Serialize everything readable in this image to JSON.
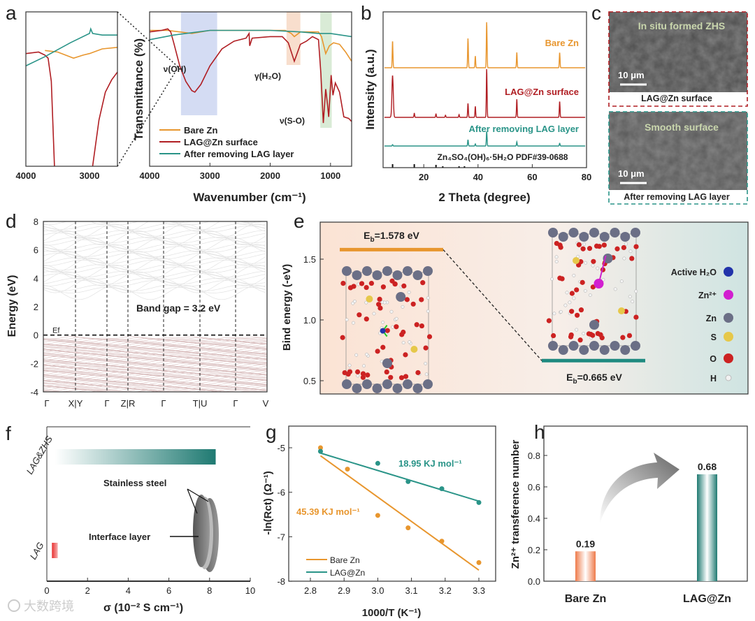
{
  "panel_labels": {
    "a": "a",
    "b": "b",
    "c": "c",
    "d": "d",
    "e": "e",
    "f": "f",
    "g": "g",
    "h": "h"
  },
  "colors": {
    "orange": "#e8962e",
    "red": "#b01e23",
    "teal": "#2a9488",
    "dark_teal": "#1f7a72"
  },
  "watermark": "大数跨境",
  "chart_data": [
    {
      "panel": "a",
      "type": "line",
      "title": "",
      "xlabel": "Wavenumber (cm⁻¹)",
      "ylabel": "Transmittance (%)",
      "xlim": [
        4000,
        650
      ],
      "ylim": [
        0,
        100
      ],
      "xticks": [
        "4000",
        "3000",
        "2000",
        "1000"
      ],
      "legend_position": "bottom-left",
      "bands": [
        {
          "label": "ν(OH)",
          "range": [
            3480,
            2880
          ],
          "color": "#c9d3f0"
        },
        {
          "label": "γ(H₂O)",
          "range": [
            1730,
            1500
          ],
          "color": "#f6d6c0"
        },
        {
          "label": "ν(S-O)",
          "range": [
            1170,
            980
          ],
          "color": "#cfe6cc"
        }
      ],
      "series": [
        {
          "name": "Bare Zn",
          "color": "#e8962e",
          "points": [
            [
              4000,
              88
            ],
            [
              3700,
              88
            ],
            [
              3300,
              86
            ],
            [
              3000,
              88
            ],
            [
              2400,
              88
            ],
            [
              1750,
              88
            ],
            [
              1650,
              86
            ],
            [
              1600,
              84
            ],
            [
              1500,
              87
            ],
            [
              1200,
              87
            ],
            [
              1150,
              84
            ],
            [
              1080,
              73
            ],
            [
              1020,
              78
            ],
            [
              950,
              80
            ],
            [
              850,
              79
            ],
            [
              750,
              74
            ],
            [
              650,
              68
            ]
          ]
        },
        {
          "name": "LAG@Zn surface",
          "color": "#b01e23",
          "points": [
            [
              4000,
              87
            ],
            [
              3800,
              88
            ],
            [
              3700,
              89
            ],
            [
              3650,
              87
            ],
            [
              3600,
              80
            ],
            [
              3500,
              65
            ],
            [
              3400,
              55
            ],
            [
              3300,
              49
            ],
            [
              3250,
              48
            ],
            [
              3150,
              53
            ],
            [
              3000,
              65
            ],
            [
              2800,
              76
            ],
            [
              2600,
              81
            ],
            [
              2400,
              83
            ],
            [
              2350,
              86
            ],
            [
              2340,
              78
            ],
            [
              2300,
              83
            ],
            [
              2000,
              84
            ],
            [
              1800,
              84
            ],
            [
              1700,
              80
            ],
            [
              1600,
              68
            ],
            [
              1500,
              79
            ],
            [
              1400,
              81
            ],
            [
              1300,
              84
            ],
            [
              1200,
              82
            ],
            [
              1160,
              60
            ],
            [
              1120,
              28
            ],
            [
              1080,
              50
            ],
            [
              1050,
              40
            ],
            [
              1030,
              32
            ],
            [
              990,
              59
            ],
            [
              960,
              46
            ],
            [
              920,
              54
            ],
            [
              850,
              48
            ],
            [
              780,
              32
            ],
            [
              700,
              31
            ],
            [
              650,
              29
            ]
          ]
        },
        {
          "name": "After removing LAG layer",
          "color": "#2a9488",
          "points": [
            [
              4000,
              82
            ],
            [
              3600,
              85
            ],
            [
              3000,
              88
            ],
            [
              2500,
              88
            ],
            [
              2000,
              88
            ],
            [
              1500,
              87
            ],
            [
              1200,
              86
            ],
            [
              1000,
              86
            ],
            [
              650,
              84
            ]
          ]
        }
      ],
      "inset": {
        "xlim": [
          4000,
          2560
        ],
        "xticks": [
          "4000",
          "3000"
        ],
        "series": [
          {
            "name": "Bare Zn",
            "points": [
              [
                3700,
                75
              ],
              [
                3500,
                74
              ],
              [
                3250,
                70
              ],
              [
                3100,
                72
              ],
              [
                3000,
                73
              ],
              [
                2800,
                76
              ],
              [
                2560,
                77
              ]
            ]
          },
          {
            "name": "LAG@Zn surface",
            "points": [
              [
                4000,
                73
              ],
              [
                3800,
                74
              ],
              [
                3700,
                72
              ],
              [
                3650,
                70
              ],
              [
                3600,
                55
              ],
              [
                3550,
                0
              ],
              [
                3450,
                -40
              ],
              [
                3000,
                -40
              ],
              [
                2950,
                0
              ],
              [
                2850,
                30
              ],
              [
                2750,
                48
              ],
              [
                2650,
                56
              ],
              [
                2560,
                61
              ]
            ]
          },
          {
            "name": "After removing LAG layer",
            "points": [
              [
                4000,
                65
              ],
              [
                3700,
                71
              ],
              [
                3300,
                80
              ],
              [
                3000,
                86
              ],
              [
                2980,
                89
              ],
              [
                2950,
                86
              ],
              [
                2800,
                85
              ],
              [
                2560,
                85
              ]
            ]
          }
        ]
      }
    },
    {
      "panel": "b",
      "type": "line",
      "xlabel": "2 Theta (degree)",
      "ylabel": "Intensity (a.u.)",
      "xlim": [
        5,
        80
      ],
      "ylim": [
        0,
        223
      ],
      "xticks": [
        "20",
        "40",
        "60",
        "80"
      ],
      "series": [
        {
          "name": "Bare Zn",
          "color": "#e8962e",
          "offset": 143,
          "peaks": [
            [
              8.5,
              39
            ],
            [
              36.3,
              42
            ],
            [
              39,
              17
            ],
            [
              43.2,
              66
            ],
            [
              54.3,
              22
            ],
            [
              70.1,
              22
            ]
          ]
        },
        {
          "name": "LAG@Zn surface",
          "color": "#b01e23",
          "offset": 72,
          "peaks": [
            [
              8.5,
              60
            ],
            [
              16.5,
              6
            ],
            [
              24.5,
              5
            ],
            [
              28,
              3
            ],
            [
              33,
              4
            ],
            [
              36.3,
              20
            ],
            [
              39,
              16
            ],
            [
              43.2,
              70
            ],
            [
              54.3,
              26
            ],
            [
              70.1,
              23
            ]
          ]
        },
        {
          "name": "After removing LAG layer",
          "color": "#2a9488",
          "offset": 31,
          "peaks": [
            [
              8.5,
              2
            ],
            [
              36.3,
              9
            ],
            [
              39,
              3
            ],
            [
              43.2,
              21
            ],
            [
              54.3,
              6
            ],
            [
              70.1,
              4
            ]
          ]
        }
      ],
      "reference": {
        "label": "Zn₄SO₄(OH)₆·5H₂O  PDF#39-0688",
        "sticks": [
          [
            8.5,
            5
          ],
          [
            16.5,
            5
          ],
          [
            24.5,
            4
          ],
          [
            27,
            2
          ],
          [
            33,
            2
          ],
          [
            35,
            2
          ]
        ]
      }
    },
    {
      "panel": "d",
      "type": "line",
      "ylabel": "Energy (eV)",
      "ylim": [
        -4,
        8
      ],
      "yticks": [
        "8",
        "6",
        "4",
        "2",
        "0",
        "-2",
        "-4"
      ],
      "kpath": [
        "Γ",
        "X|Y",
        "Γ",
        "Z|R",
        "Γ",
        "T|U",
        "Γ",
        "V"
      ],
      "fermi_label": "Ef",
      "band_gap_eV": 3.2,
      "annotation": "Band gap = 3.2 eV"
    },
    {
      "panel": "e",
      "type": "line",
      "ylabel": "Bind energy (-eV)",
      "ylim": [
        0.42,
        1.78
      ],
      "yticks": [
        "1.5",
        "1.0",
        "0.5"
      ],
      "levels": [
        {
          "value": 1.578,
          "label": {
            "main": "E",
            "sub": "b",
            "rest": "=1.578 eV"
          },
          "color": "#e8962e"
        },
        {
          "value": 0.665,
          "label": {
            "main": "E",
            "sub": "b",
            "rest": "=0.665 eV"
          },
          "color": "#1f8a80"
        }
      ],
      "legend": [
        {
          "label": "Active H₂O",
          "color": "#2233aa"
        },
        {
          "label": "Zn²⁺",
          "color": "#d21fd0"
        },
        {
          "label": "Zn",
          "color": "#6b6f86"
        },
        {
          "label": "S",
          "color": "#e6c84a"
        },
        {
          "label": "O",
          "color": "#cc2222"
        },
        {
          "label": "H",
          "color": "#f2f2f2"
        }
      ]
    },
    {
      "panel": "f",
      "type": "bar",
      "xlabel": "σ (10⁻² S cm⁻¹)",
      "xlim": [
        0,
        10
      ],
      "xticks": [
        "0",
        "2",
        "4",
        "6",
        "8",
        "10"
      ],
      "categories": [
        "LAG&ZHS",
        "LAG"
      ],
      "values": [
        8.3,
        0.4
      ],
      "annotations": [
        "Stainless steel",
        "Interface layer"
      ]
    },
    {
      "panel": "g",
      "type": "scatter",
      "xlabel": "1000/T (K⁻¹)",
      "ylabel": "-ln(Rct) (Ω⁻¹)",
      "xlim": [
        2.75,
        3.36
      ],
      "ylim": [
        -8,
        -4.5
      ],
      "xticks": [
        "2.8",
        "2.9",
        "3.0",
        "3.1",
        "3.2",
        "3.3"
      ],
      "yticks": [
        "-5",
        "-6",
        "-7",
        "-8"
      ],
      "series": [
        {
          "name": "Bare Zn",
          "color": "#e8962e",
          "x": [
            2.83,
            2.91,
            3.0,
            3.09,
            3.19,
            3.3
          ],
          "y": [
            -5.0,
            -5.48,
            -6.52,
            -6.8,
            -7.1,
            -7.58
          ],
          "fit": [
            [
              2.83,
              -5.18
            ],
            [
              3.3,
              -7.75
            ]
          ],
          "annotation": "45.39 KJ mol⁻¹"
        },
        {
          "name": "LAG@Zn",
          "color": "#2a9488",
          "x": [
            2.83,
            3.0,
            3.09,
            3.19,
            3.3
          ],
          "y": [
            -5.08,
            -5.35,
            -5.76,
            -5.92,
            -6.23
          ],
          "fit": [
            [
              2.83,
              -5.12
            ],
            [
              3.3,
              -6.2
            ]
          ],
          "annotation": "18.95 KJ mol⁻¹"
        }
      ],
      "legend_position": "bottom-left"
    },
    {
      "panel": "h",
      "type": "bar",
      "ylabel": "Zn²⁺ transference number",
      "ylim": [
        0,
        1.0
      ],
      "yticks": [
        "0.0",
        "0.2",
        "0.4",
        "0.6",
        "0.8"
      ],
      "categories": [
        "Bare Zn",
        "LAG@Zn"
      ],
      "values": [
        0.19,
        0.68
      ],
      "value_labels": [
        "0.19",
        "0.68"
      ],
      "colors": [
        "#ee7a4a",
        "#1f7a72"
      ]
    }
  ],
  "sem": [
    {
      "overlay": "In situ formed  ZHS",
      "scale": "10 μm",
      "caption": "LAG@Zn surface",
      "border": "#b01e23"
    },
    {
      "overlay": "Smooth surface",
      "scale": "10 μm",
      "caption": "After removing LAG layer",
      "border": "#2a9488"
    }
  ]
}
